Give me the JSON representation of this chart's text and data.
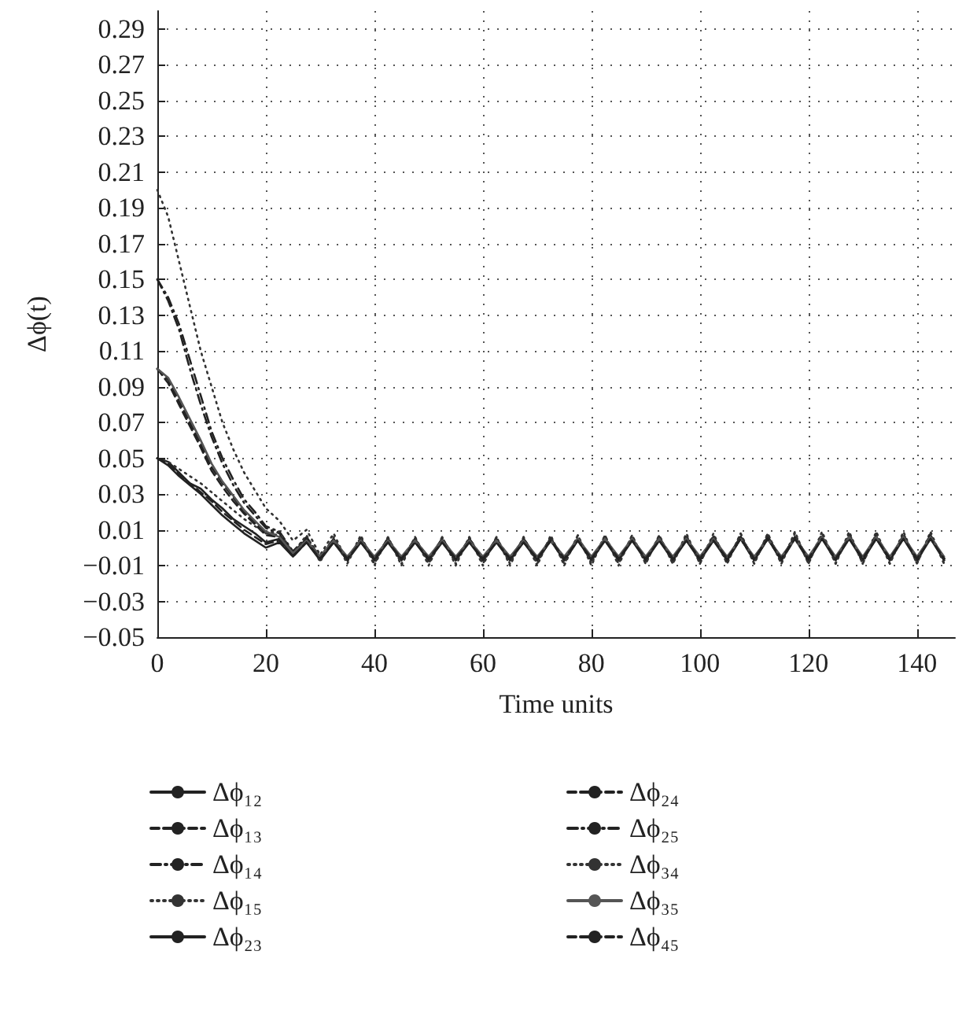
{
  "chart_data": {
    "type": "line",
    "xlabel": "Time units",
    "ylabel": "Δϕ(t)",
    "x": [
      0,
      2,
      4,
      6,
      8,
      10,
      12,
      14,
      16,
      18,
      20,
      22.5,
      25,
      27.5,
      30,
      32.5,
      35,
      37.5,
      40,
      42.5,
      45,
      47.5,
      50,
      52.5,
      55,
      57.5,
      60,
      62.5,
      65,
      67.5,
      70,
      72.5,
      75,
      77.5,
      80,
      82.5,
      85,
      87.5,
      90,
      92.5,
      95,
      97.5,
      100,
      102.5,
      105,
      107.5,
      110,
      112.5,
      115,
      117.5,
      120,
      122.5,
      125,
      127.5,
      130,
      132.5,
      135,
      137.5,
      140,
      142.5,
      145
    ],
    "xlim": [
      0,
      147
    ],
    "xticks": [
      0,
      20,
      40,
      60,
      80,
      100,
      120,
      140
    ],
    "ylim": [
      -0.05,
      0.3
    ],
    "yticks": [
      {
        "value": -0.05,
        "label": "−0.05"
      },
      {
        "value": -0.03,
        "label": "−0.03"
      },
      {
        "value": -0.01,
        "label": "−0.01"
      },
      0.01,
      0.03,
      0.05,
      0.07,
      0.09,
      0.11,
      0.13,
      0.15,
      0.17,
      0.19,
      0.21,
      0.23,
      0.25,
      0.27,
      0.29
    ],
    "grid": true,
    "legend": "bottom",
    "marker": "none",
    "series": [
      {
        "name": "Δϕ₁₂",
        "color": "#222222",
        "line_style": "solid",
        "values": [
          0.05,
          0.048,
          0.042,
          0.036,
          0.033,
          0.027,
          0.022,
          0.016,
          0.012,
          0.008,
          0.003,
          0.005,
          -0.004,
          0.004,
          -0.006,
          0.004,
          -0.006,
          0.004,
          -0.006,
          0.004,
          -0.006,
          0.004,
          -0.006,
          0.004,
          -0.006,
          0.004,
          -0.006,
          0.004,
          -0.006,
          0.004,
          -0.006,
          0.005,
          -0.006,
          0.005,
          -0.006,
          0.005,
          -0.006,
          0.005,
          -0.006,
          0.005,
          -0.006,
          0.005,
          -0.006,
          0.005,
          -0.006,
          0.006,
          -0.006,
          0.006,
          -0.006,
          0.006,
          -0.006,
          0.006,
          -0.006,
          0.006,
          -0.006,
          0.006,
          -0.006,
          0.006,
          -0.006,
          0.006,
          -0.006
        ]
      },
      {
        "name": "Δϕ₁₃",
        "color": "#222222",
        "line_style": "dashed",
        "values": [
          0.1,
          0.094,
          0.082,
          0.07,
          0.058,
          0.045,
          0.036,
          0.028,
          0.02,
          0.014,
          0.008,
          0.007,
          -0.003,
          0.005,
          -0.005,
          0.004,
          -0.006,
          0.004,
          -0.006,
          0.004,
          -0.006,
          0.004,
          -0.006,
          0.004,
          -0.006,
          0.004,
          -0.006,
          0.004,
          -0.006,
          0.004,
          -0.006,
          0.004,
          -0.006,
          0.005,
          -0.006,
          0.005,
          -0.006,
          0.005,
          -0.006,
          0.005,
          -0.006,
          0.005,
          -0.006,
          0.005,
          -0.006,
          0.005,
          -0.006,
          0.005,
          -0.006,
          0.006,
          -0.006,
          0.006,
          -0.006,
          0.006,
          -0.006,
          0.006,
          -0.006,
          0.006,
          -0.006,
          0.006,
          -0.006
        ]
      },
      {
        "name": "Δϕ₁₄",
        "color": "#222222",
        "line_style": "dashdot",
        "values": [
          0.15,
          0.14,
          0.125,
          0.105,
          0.085,
          0.065,
          0.05,
          0.038,
          0.027,
          0.02,
          0.012,
          0.009,
          -0.002,
          0.006,
          -0.005,
          0.005,
          -0.006,
          0.005,
          -0.006,
          0.005,
          -0.006,
          0.005,
          -0.006,
          0.005,
          -0.006,
          0.005,
          -0.006,
          0.005,
          -0.006,
          0.005,
          -0.006,
          0.005,
          -0.006,
          0.005,
          -0.006,
          0.005,
          -0.006,
          0.005,
          -0.006,
          0.005,
          -0.006,
          0.005,
          -0.006,
          0.006,
          -0.006,
          0.006,
          -0.006,
          0.006,
          -0.006,
          0.006,
          -0.006,
          0.006,
          -0.006,
          0.006,
          -0.006,
          0.006,
          -0.006,
          0.006,
          -0.006,
          0.006,
          -0.006
        ]
      },
      {
        "name": "Δϕ₁₅",
        "color": "#333333",
        "line_style": "dotted",
        "values": [
          0.2,
          0.185,
          0.16,
          0.135,
          0.11,
          0.09,
          0.07,
          0.055,
          0.042,
          0.032,
          0.022,
          0.015,
          0.004,
          0.01,
          -0.004,
          0.008,
          -0.008,
          0.007,
          -0.01,
          0.006,
          -0.01,
          0.006,
          -0.01,
          0.006,
          -0.01,
          0.006,
          -0.01,
          0.006,
          -0.01,
          0.006,
          -0.01,
          0.007,
          -0.01,
          0.007,
          -0.01,
          0.007,
          -0.01,
          0.007,
          -0.009,
          0.007,
          -0.009,
          0.008,
          -0.009,
          0.008,
          -0.009,
          0.008,
          -0.009,
          0.008,
          -0.009,
          0.009,
          -0.009,
          0.009,
          -0.009,
          0.009,
          -0.009,
          0.009,
          -0.009,
          0.009,
          -0.009,
          0.009,
          -0.009
        ]
      },
      {
        "name": "Δϕ₂₃",
        "color": "#222222",
        "line_style": "solid",
        "values": [
          0.05,
          0.046,
          0.04,
          0.035,
          0.03,
          0.024,
          0.018,
          0.013,
          0.008,
          0.004,
          0.0,
          0.003,
          -0.005,
          0.003,
          -0.007,
          0.003,
          -0.007,
          0.003,
          -0.007,
          0.003,
          -0.007,
          0.003,
          -0.007,
          0.003,
          -0.007,
          0.003,
          -0.007,
          0.003,
          -0.007,
          0.003,
          -0.007,
          0.004,
          -0.007,
          0.004,
          -0.007,
          0.004,
          -0.007,
          0.004,
          -0.007,
          0.004,
          -0.007,
          0.004,
          -0.007,
          0.004,
          -0.007,
          0.005,
          -0.007,
          0.005,
          -0.007,
          0.005,
          -0.007,
          0.005,
          -0.007,
          0.005,
          -0.007,
          0.005,
          -0.007,
          0.005,
          -0.007,
          0.005,
          -0.007
        ]
      },
      {
        "name": "Δϕ₂₄",
        "color": "#222222",
        "line_style": "dashed",
        "values": [
          0.1,
          0.092,
          0.08,
          0.068,
          0.056,
          0.043,
          0.034,
          0.026,
          0.019,
          0.013,
          0.007,
          0.006,
          -0.004,
          0.004,
          -0.006,
          0.004,
          -0.007,
          0.004,
          -0.007,
          0.004,
          -0.007,
          0.004,
          -0.007,
          0.004,
          -0.007,
          0.004,
          -0.007,
          0.004,
          -0.007,
          0.004,
          -0.007,
          0.004,
          -0.007,
          0.004,
          -0.007,
          0.005,
          -0.007,
          0.005,
          -0.007,
          0.005,
          -0.007,
          0.005,
          -0.007,
          0.005,
          -0.007,
          0.005,
          -0.007,
          0.005,
          -0.007,
          0.005,
          -0.007,
          0.006,
          -0.007,
          0.006,
          -0.007,
          0.006,
          -0.007,
          0.006,
          -0.007,
          0.006,
          -0.007
        ]
      },
      {
        "name": "Δϕ₂₅",
        "color": "#222222",
        "line_style": "dashdot",
        "values": [
          0.15,
          0.138,
          0.122,
          0.1,
          0.08,
          0.062,
          0.047,
          0.035,
          0.025,
          0.018,
          0.011,
          0.008,
          -0.003,
          0.005,
          -0.006,
          0.005,
          -0.007,
          0.005,
          -0.007,
          0.005,
          -0.007,
          0.005,
          -0.007,
          0.005,
          -0.007,
          0.005,
          -0.007,
          0.005,
          -0.007,
          0.005,
          -0.007,
          0.005,
          -0.007,
          0.005,
          -0.007,
          0.005,
          -0.007,
          0.005,
          -0.007,
          0.006,
          -0.007,
          0.006,
          -0.007,
          0.006,
          -0.007,
          0.006,
          -0.007,
          0.006,
          -0.007,
          0.006,
          -0.007,
          0.006,
          -0.007,
          0.007,
          -0.007,
          0.007,
          -0.007,
          0.007,
          -0.007,
          0.007,
          -0.007
        ]
      },
      {
        "name": "Δϕ₃₄",
        "color": "#333333",
        "line_style": "dotted",
        "values": [
          0.05,
          0.048,
          0.044,
          0.04,
          0.036,
          0.031,
          0.026,
          0.021,
          0.016,
          0.012,
          0.008,
          0.009,
          -0.003,
          0.007,
          -0.008,
          0.006,
          -0.009,
          0.006,
          -0.009,
          0.006,
          -0.009,
          0.006,
          -0.009,
          0.006,
          -0.009,
          0.006,
          -0.009,
          0.006,
          -0.009,
          0.006,
          -0.009,
          0.006,
          -0.009,
          0.007,
          -0.009,
          0.007,
          -0.009,
          0.007,
          -0.009,
          0.007,
          -0.009,
          0.007,
          -0.009,
          0.007,
          -0.009,
          0.008,
          -0.009,
          0.008,
          -0.009,
          0.008,
          -0.009,
          0.008,
          -0.009,
          0.008,
          -0.009,
          0.008,
          -0.009,
          0.008,
          -0.009,
          0.008,
          -0.009
        ]
      },
      {
        "name": "Δϕ₃₅",
        "color": "#555555",
        "line_style": "solid",
        "values": [
          0.1,
          0.095,
          0.084,
          0.072,
          0.06,
          0.047,
          0.037,
          0.029,
          0.021,
          0.015,
          0.009,
          0.006,
          -0.003,
          0.004,
          -0.005,
          0.004,
          -0.005,
          0.004,
          -0.005,
          0.004,
          -0.005,
          0.004,
          -0.005,
          0.004,
          -0.005,
          0.004,
          -0.005,
          0.004,
          -0.005,
          0.004,
          -0.005,
          0.004,
          -0.005,
          0.005,
          -0.005,
          0.005,
          -0.005,
          0.005,
          -0.005,
          0.005,
          -0.005,
          0.005,
          -0.005,
          0.005,
          -0.005,
          0.005,
          -0.005,
          0.005,
          -0.005,
          0.005,
          -0.005,
          0.006,
          -0.005,
          0.006,
          -0.005,
          0.006,
          -0.005,
          0.006,
          -0.005,
          0.006,
          -0.005
        ]
      },
      {
        "name": "Δϕ₄₅",
        "color": "#222222",
        "line_style": "dashed",
        "values": [
          0.05,
          0.047,
          0.041,
          0.036,
          0.031,
          0.026,
          0.02,
          0.015,
          0.01,
          0.006,
          0.002,
          0.004,
          -0.005,
          0.003,
          -0.006,
          0.003,
          -0.006,
          0.003,
          -0.006,
          0.003,
          -0.006,
          0.003,
          -0.006,
          0.003,
          -0.006,
          0.003,
          -0.006,
          0.003,
          -0.006,
          0.003,
          -0.006,
          0.004,
          -0.006,
          0.004,
          -0.006,
          0.004,
          -0.006,
          0.004,
          -0.006,
          0.004,
          -0.006,
          0.004,
          -0.006,
          0.004,
          -0.006,
          0.005,
          -0.006,
          0.005,
          -0.006,
          0.005,
          -0.006,
          0.005,
          -0.006,
          0.005,
          -0.006,
          0.005,
          -0.006,
          0.005,
          -0.006,
          0.005,
          -0.006
        ]
      }
    ]
  }
}
